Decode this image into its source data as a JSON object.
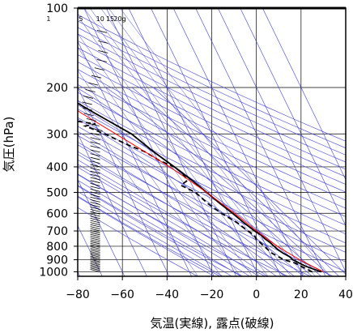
{
  "chart_data": {
    "type": "line",
    "diagram": "skew-T log-P aerological diagram",
    "xlabel": "気温(実線), 露点(破線)",
    "ylabel": "気圧(hPa)",
    "xlim": [
      -80,
      40
    ],
    "ylim": [
      1040,
      100
    ],
    "y_scale": "log",
    "x_ticks": [
      -80,
      -60,
      -40,
      -20,
      0,
      20,
      40
    ],
    "y_ticks": [
      100,
      200,
      300,
      400,
      500,
      600,
      700,
      800,
      900,
      1000
    ],
    "mixing_ratio_labels": [
      {
        "text": "1",
        "t": -37.5
      },
      {
        "text": "5",
        "t": -23.0
      },
      {
        "text": "10",
        "t": -15.3
      },
      {
        "text": "15",
        "t": -10.8
      },
      {
        "text": "20g",
        "t": -7.4
      }
    ],
    "series": [
      {
        "role": "temperature",
        "style": "solid",
        "color": "#000000",
        "points": [
          [
            1000,
            29
          ],
          [
            975,
            26
          ],
          [
            950,
            23
          ],
          [
            925,
            21
          ],
          [
            900,
            19
          ],
          [
            875,
            18
          ],
          [
            850,
            16
          ],
          [
            825,
            14.5
          ],
          [
            800,
            13.5
          ],
          [
            775,
            12.5
          ],
          [
            750,
            11
          ],
          [
            725,
            10
          ],
          [
            700,
            8
          ],
          [
            650,
            5
          ],
          [
            600,
            2
          ],
          [
            550,
            -1.5
          ],
          [
            500,
            -5
          ],
          [
            450,
            -9
          ],
          [
            400,
            -14
          ],
          [
            350,
            -20
          ],
          [
            300,
            -26
          ],
          [
            250,
            -38
          ],
          [
            200,
            -52
          ],
          [
            175,
            -60
          ],
          [
            150,
            -66
          ],
          [
            125,
            -69
          ],
          [
            110,
            -72
          ],
          [
            100,
            -74
          ]
        ]
      },
      {
        "role": "dewpoint",
        "style": "dashed",
        "color": "#000000",
        "points": [
          [
            1000,
            25
          ],
          [
            975,
            23
          ],
          [
            950,
            21
          ],
          [
            925,
            19
          ],
          [
            900,
            15
          ],
          [
            875,
            13
          ],
          [
            850,
            11
          ],
          [
            825,
            10
          ],
          [
            800,
            9
          ],
          [
            775,
            8
          ],
          [
            750,
            7
          ],
          [
            725,
            7
          ],
          [
            700,
            5
          ],
          [
            650,
            2
          ],
          [
            600,
            -3
          ],
          [
            550,
            -7
          ],
          [
            500,
            -10
          ],
          [
            470,
            -15
          ],
          [
            450,
            -11
          ],
          [
            420,
            -12
          ],
          [
            400,
            -14
          ],
          [
            380,
            -19
          ],
          [
            350,
            -24
          ],
          [
            330,
            -30
          ],
          [
            300,
            -38
          ],
          [
            280,
            -45
          ],
          [
            275,
            -40
          ],
          [
            265,
            -52
          ],
          [
            250,
            -55
          ],
          [
            235,
            -62
          ],
          [
            228,
            -73
          ],
          [
            230,
            -80
          ]
        ]
      },
      {
        "role": "parcel",
        "style": "solid",
        "color": "#ff0000",
        "points": [
          [
            1000,
            30
          ],
          [
            950,
            26
          ],
          [
            900,
            22
          ],
          [
            850,
            18.5
          ],
          [
            800,
            15
          ],
          [
            750,
            12
          ],
          [
            700,
            9
          ],
          [
            600,
            3
          ],
          [
            500,
            -5
          ],
          [
            400,
            -16
          ],
          [
            300,
            -33
          ],
          [
            250,
            -44
          ],
          [
            200,
            -54
          ],
          [
            150,
            -67
          ],
          [
            130,
            -74
          ]
        ]
      }
    ]
  }
}
